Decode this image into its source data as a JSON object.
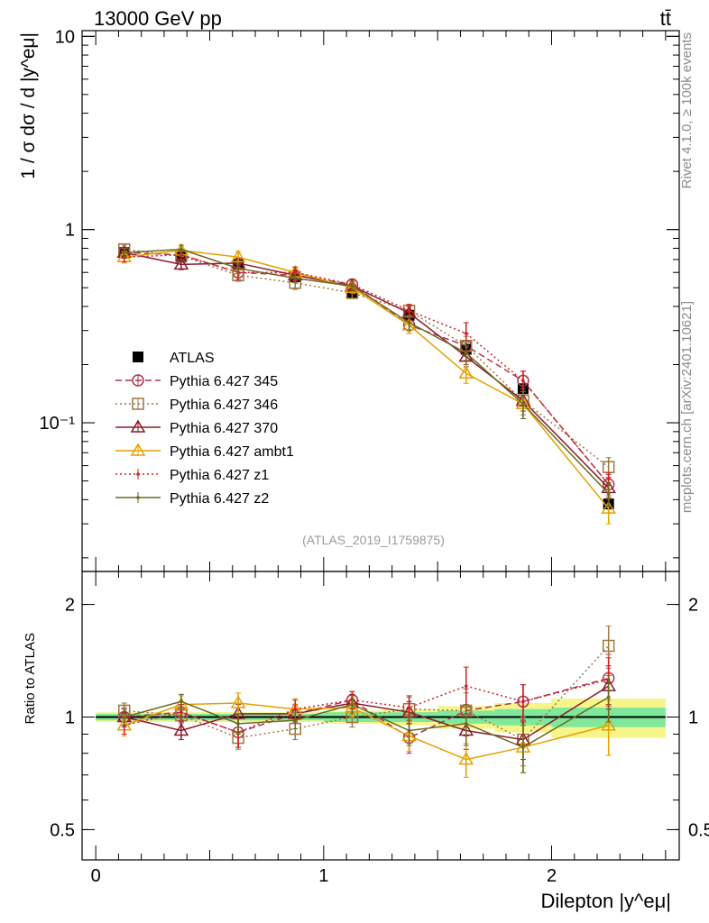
{
  "header": {
    "left_title": "13000 GeV pp",
    "right_title": "tt̄",
    "side_text_top": "Rivet 4.1.0, ≥ 100k events",
    "side_text_bottom": "mcplots.cern.ch [arXiv:2401.10621]",
    "analysis_label": "(ATLAS_2019_I1759875)"
  },
  "chart_data": [
    {
      "type": "line",
      "panel": "main",
      "yscale": "log",
      "ylabel": "1 / σ  dσ / d |y^eμ|",
      "ylim": [
        0.017,
        10.7
      ],
      "xlim": [
        -0.06,
        2.56
      ],
      "y_ticks": [
        {
          "value": 10,
          "label": "10"
        },
        {
          "value": 1,
          "label": "1"
        },
        {
          "value": 0.1,
          "label": "10⁻¹"
        }
      ],
      "x": [
        0.125,
        0.375,
        0.625,
        0.875,
        1.125,
        1.375,
        1.625,
        1.875,
        2.25
      ],
      "series": [
        {
          "name": "ATLAS",
          "color": "#000000",
          "marker": "square-filled",
          "values": [
            0.76,
            0.72,
            0.66,
            0.57,
            0.47,
            0.36,
            0.24,
            0.15,
            0.038
          ],
          "errors": [
            0.02,
            0.02,
            0.02,
            0.02,
            0.02,
            0.02,
            0.015,
            0.01,
            0.004
          ]
        },
        {
          "name": "Pythia 6.427 345",
          "color": "#b03050",
          "marker": "circle-open",
          "dash": "7,4",
          "values": [
            0.76,
            0.74,
            0.6,
            0.58,
            0.52,
            0.32,
            0.25,
            0.165,
            0.048
          ],
          "errors": [
            0.05,
            0.04,
            0.06,
            0.04,
            0.03,
            0.03,
            0.04,
            0.02,
            0.006
          ]
        },
        {
          "name": "Pythia 6.427 346",
          "color": "#a07840",
          "marker": "square-open",
          "dash": "2,3",
          "values": [
            0.79,
            0.73,
            0.58,
            0.53,
            0.47,
            0.38,
            0.25,
            0.13,
            0.059
          ],
          "errors": [
            0.04,
            0.04,
            0.04,
            0.04,
            0.03,
            0.03,
            0.03,
            0.02,
            0.007
          ]
        },
        {
          "name": "Pythia 6.427 370",
          "color": "#8b1a2a",
          "marker": "triangle-open",
          "dash": "",
          "values": [
            0.76,
            0.66,
            0.67,
            0.58,
            0.51,
            0.37,
            0.22,
            0.13,
            0.046
          ],
          "errors": [
            0.04,
            0.04,
            0.04,
            0.03,
            0.03,
            0.03,
            0.025,
            0.015,
            0.006
          ]
        },
        {
          "name": "Pythia 6.427 ambt1",
          "color": "#e8a000",
          "marker": "triangle-open",
          "dash": "",
          "values": [
            0.72,
            0.78,
            0.72,
            0.6,
            0.5,
            0.32,
            0.18,
            0.125,
            0.036
          ],
          "errors": [
            0.05,
            0.05,
            0.05,
            0.04,
            0.03,
            0.03,
            0.02,
            0.02,
            0.006
          ]
        },
        {
          "name": "Pythia 6.427 z1",
          "color": "#d02020",
          "marker": "dot",
          "dash": "2,3",
          "values": [
            0.72,
            0.74,
            0.6,
            0.6,
            0.52,
            0.38,
            0.29,
            0.165,
            0.048
          ],
          "errors": [
            0.04,
            0.04,
            0.05,
            0.04,
            0.03,
            0.03,
            0.04,
            0.02,
            0.007
          ]
        },
        {
          "name": "Pythia 6.427 z2",
          "color": "#6b6b1f",
          "marker": "dot",
          "dash": "",
          "values": [
            0.76,
            0.79,
            0.63,
            0.56,
            0.51,
            0.33,
            0.23,
            0.125,
            0.043
          ],
          "errors": [
            0.04,
            0.04,
            0.04,
            0.03,
            0.03,
            0.03,
            0.03,
            0.02,
            0.006
          ]
        }
      ]
    },
    {
      "type": "line",
      "panel": "ratio",
      "yscale": "log",
      "ylabel": "Ratio to ATLAS",
      "xlabel": "Dilepton |y^eμ|",
      "ylim": [
        0.415,
        2.45
      ],
      "xlim": [
        -0.06,
        2.56
      ],
      "y_ticks": [
        {
          "value": 2,
          "label": "2"
        },
        {
          "value": 1,
          "label": "1"
        },
        {
          "value": 0.5,
          "label": "0.5"
        }
      ],
      "x_ticks": [
        {
          "value": 0,
          "label": "0"
        },
        {
          "value": 1,
          "label": "1"
        },
        {
          "value": 2,
          "label": "2"
        }
      ],
      "x": [
        0.125,
        0.375,
        0.625,
        0.875,
        1.125,
        1.375,
        1.625,
        1.875,
        2.25
      ],
      "band": {
        "x_edges": [
          0.0,
          0.25,
          0.5,
          0.75,
          1.0,
          1.25,
          1.5,
          1.75,
          2.0,
          2.5
        ],
        "inner": [
          0.02,
          0.02,
          0.02,
          0.02,
          0.03,
          0.03,
          0.04,
          0.05,
          0.06
        ],
        "outer": [
          0.03,
          0.03,
          0.03,
          0.03,
          0.04,
          0.05,
          0.07,
          0.09,
          0.12
        ],
        "inner_color": "#7fe89a",
        "outer_color": "#f5f58a"
      },
      "series": [
        {
          "name": "Pythia 6.427 345",
          "color": "#b03050",
          "marker": "circle-open",
          "dash": "7,4",
          "values": [
            1.0,
            1.03,
            0.91,
            1.02,
            1.11,
            0.88,
            1.04,
            1.1,
            1.27
          ],
          "errors": [
            0.06,
            0.05,
            0.08,
            0.06,
            0.06,
            0.08,
            0.15,
            0.12,
            0.2
          ]
        },
        {
          "name": "Pythia 6.427 346",
          "color": "#a07840",
          "marker": "square-open",
          "dash": "2,3",
          "values": [
            1.04,
            1.01,
            0.88,
            0.93,
            1.0,
            1.05,
            1.04,
            0.87,
            1.55
          ],
          "errors": [
            0.05,
            0.05,
            0.06,
            0.06,
            0.06,
            0.08,
            0.12,
            0.13,
            0.2
          ]
        },
        {
          "name": "Pythia 6.427 370",
          "color": "#8b1a2a",
          "marker": "triangle-open",
          "dash": "",
          "values": [
            1.0,
            0.92,
            1.02,
            1.02,
            1.09,
            1.03,
            0.92,
            0.87,
            1.21
          ],
          "errors": [
            0.05,
            0.05,
            0.06,
            0.05,
            0.06,
            0.07,
            0.1,
            0.1,
            0.16
          ]
        },
        {
          "name": "Pythia 6.427 ambt1",
          "color": "#e8a000",
          "marker": "triangle-open",
          "dash": "",
          "values": [
            0.95,
            1.08,
            1.09,
            1.05,
            1.06,
            0.89,
            0.77,
            0.83,
            0.95
          ],
          "errors": [
            0.06,
            0.06,
            0.07,
            0.07,
            0.06,
            0.08,
            0.08,
            0.12,
            0.16
          ]
        },
        {
          "name": "Pythia 6.427 z1",
          "color": "#d02020",
          "marker": "dot",
          "dash": "2,3",
          "values": [
            0.95,
            1.03,
            0.91,
            1.05,
            1.11,
            1.06,
            1.21,
            1.1,
            1.26
          ],
          "errors": [
            0.05,
            0.05,
            0.08,
            0.06,
            0.06,
            0.08,
            0.15,
            0.12,
            0.18
          ]
        },
        {
          "name": "Pythia 6.427 z2",
          "color": "#6b6b1f",
          "marker": "dot",
          "dash": "",
          "values": [
            1.0,
            1.1,
            0.96,
            0.98,
            1.08,
            0.92,
            0.96,
            0.83,
            1.13
          ],
          "errors": [
            0.05,
            0.05,
            0.06,
            0.05,
            0.06,
            0.08,
            0.12,
            0.12,
            0.16
          ]
        }
      ]
    }
  ]
}
